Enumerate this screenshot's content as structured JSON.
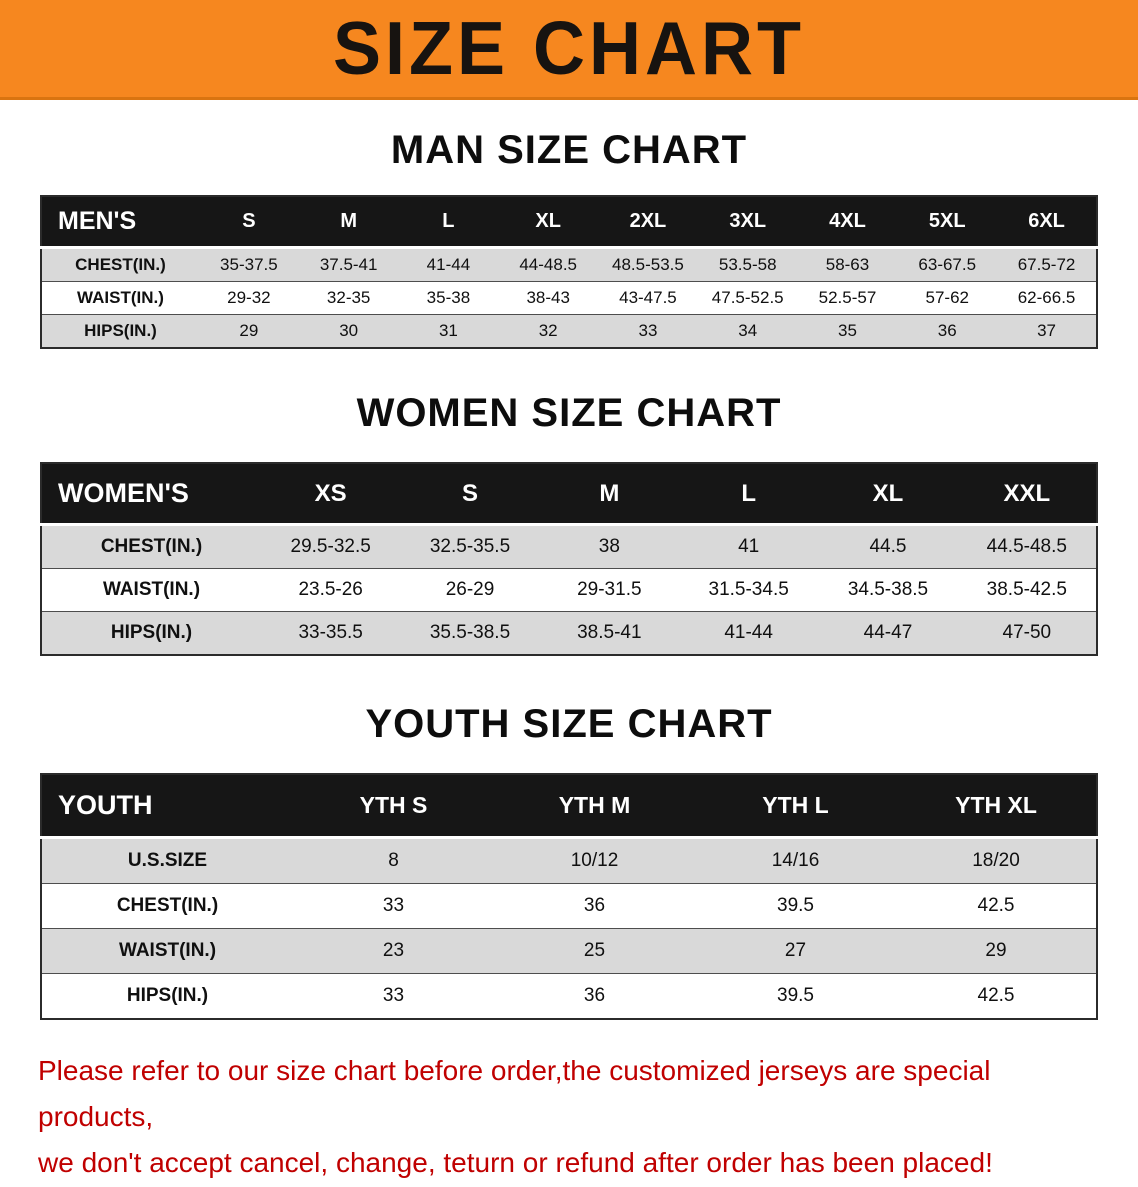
{
  "banner": {
    "title": "SIZE CHART"
  },
  "colors": {
    "banner_orange": "#f6871f",
    "table_header_black": "#161616",
    "row_gray": "#d9d9d9",
    "note_red": "#c00000"
  },
  "sections": [
    {
      "id": "men",
      "heading": "MAN SIZE CHART",
      "table": {
        "header": [
          "MEN'S",
          "S",
          "M",
          "L",
          "XL",
          "2XL",
          "3XL",
          "4XL",
          "5XL",
          "6XL"
        ],
        "rows": [
          [
            "CHEST(IN.)",
            "35-37.5",
            "37.5-41",
            "41-44",
            "44-48.5",
            "48.5-53.5",
            "53.5-58",
            "58-63",
            "63-67.5",
            "67.5-72"
          ],
          [
            "WAIST(IN.)",
            "29-32",
            "32-35",
            "35-38",
            "38-43",
            "43-47.5",
            "47.5-52.5",
            "52.5-57",
            "57-62",
            "62-66.5"
          ],
          [
            "HIPS(IN.)",
            "29",
            "30",
            "31",
            "32",
            "33",
            "34",
            "35",
            "36",
            "37"
          ]
        ]
      }
    },
    {
      "id": "women",
      "heading": "WOMEN SIZE CHART",
      "table": {
        "header": [
          "WOMEN'S",
          "XS",
          "S",
          "M",
          "L",
          "XL",
          "XXL"
        ],
        "rows": [
          [
            "CHEST(IN.)",
            "29.5-32.5",
            "32.5-35.5",
            "38",
            "41",
            "44.5",
            "44.5-48.5"
          ],
          [
            "WAIST(IN.)",
            "23.5-26",
            "26-29",
            "29-31.5",
            "31.5-34.5",
            "34.5-38.5",
            "38.5-42.5"
          ],
          [
            "HIPS(IN.)",
            "33-35.5",
            "35.5-38.5",
            "38.5-41",
            "41-44",
            "44-47",
            "47-50"
          ]
        ]
      }
    },
    {
      "id": "youth",
      "heading": "YOUTH SIZE CHART",
      "table": {
        "header": [
          "YOUTH",
          "YTH S",
          "YTH M",
          "YTH L",
          "YTH XL"
        ],
        "rows": [
          [
            "U.S.SIZE",
            "8",
            "10/12",
            "14/16",
            "18/20"
          ],
          [
            "CHEST(IN.)",
            "33",
            "36",
            "39.5",
            "42.5"
          ],
          [
            "WAIST(IN.)",
            "23",
            "25",
            "27",
            "29"
          ],
          [
            "HIPS(IN.)",
            "33",
            "36",
            "39.5",
            "42.5"
          ]
        ]
      }
    }
  ],
  "note": {
    "line1": "Please refer to our size chart before order,the customized jerseys are special products,",
    "line2": "we don't accept cancel, change, teturn or refund after order has been placed!"
  }
}
